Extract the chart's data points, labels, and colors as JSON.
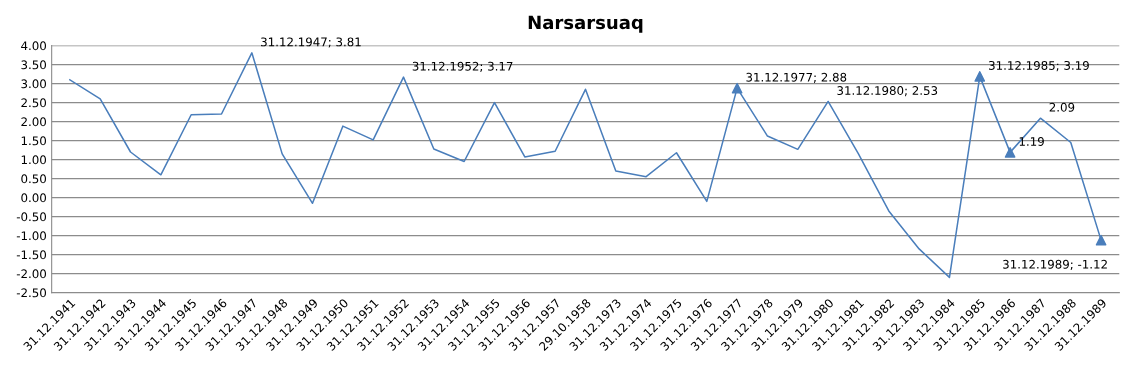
{
  "chart_data": {
    "type": "line",
    "title": "Narsarsuaq",
    "categories": [
      "31.12.1941",
      "31.12.1942",
      "31.12.1943",
      "31.12.1944",
      "31.12.1945",
      "31.12.1946",
      "31.12.1947",
      "31.12.1948",
      "31.12.1949",
      "31.12.1950",
      "31.12.1951",
      "31.12.1952",
      "31.12.1953",
      "31.12.1954",
      "31.12.1955",
      "31.12.1956",
      "31.12.1957",
      "29.10.1958",
      "31.12.1973",
      "31.12.1974",
      "31.12.1975",
      "31.12.1976",
      "31.12.1977",
      "31.12.1978",
      "31.12.1979",
      "31.12.1980",
      "31.12.1981",
      "31.12.1982",
      "31.12.1983",
      "31.12.1984",
      "31.12.1985",
      "31.12.1986",
      "31.12.1987",
      "31.12.1988",
      "31.12.1989"
    ],
    "series": [
      {
        "color": "#4a7ebb",
        "marker": "none",
        "line_style": "solid",
        "values": [
          3.1,
          2.6,
          1.2,
          0.6,
          2.18,
          2.2,
          3.81,
          1.15,
          -0.15,
          1.88,
          1.52,
          3.17,
          1.28,
          0.95,
          2.5,
          1.07,
          1.22,
          2.85,
          0.7,
          0.55,
          1.18,
          -0.1,
          2.88,
          1.62,
          1.27,
          2.53,
          1.15,
          -0.35,
          -1.35,
          -2.1,
          3.19,
          1.19,
          2.09,
          1.45,
          -1.12
        ]
      },
      {
        "type": "scatter",
        "color": "#4a7ebb",
        "marker": "triangle",
        "x": [
          "31.12.1977",
          "31.12.1985",
          "31.12.1986",
          "31.12.1989"
        ],
        "values": [
          2.88,
          3.19,
          1.19,
          -1.12
        ]
      }
    ],
    "annotations": [
      {
        "text": "31.12.1947; 3.81",
        "x": "31.12.1947",
        "y": 3.81
      },
      {
        "text": "31.12.1952; 3.17",
        "x": "31.12.1952",
        "y": 3.17
      },
      {
        "text": "31.12.1977; 2.88",
        "x": "31.12.1977",
        "y": 2.88
      },
      {
        "text": "31.12.1980; 2.53",
        "x": "31.12.1980",
        "y": 2.53
      },
      {
        "text": "31.12.1985; 3.19",
        "x": "31.12.1985",
        "y": 3.19
      },
      {
        "text": "1.19",
        "x": "31.12.1986",
        "y": 1.19
      },
      {
        "text": "2.09",
        "x": "31.12.1987",
        "y": 2.09
      },
      {
        "text": "31.12.1989; -1.12",
        "x": "31.12.1989",
        "y": -1.12
      }
    ],
    "ylim": [
      -2.5,
      4.0
    ],
    "yticks": [
      {
        "value": -2.5,
        "label": "-2.50"
      },
      {
        "value": -2.0,
        "label": "-2.00"
      },
      {
        "value": -1.5,
        "label": "-1.50"
      },
      {
        "value": -1.0,
        "label": "-1.00"
      },
      {
        "value": -0.5,
        "label": "-0.50"
      },
      {
        "value": 0,
        "label": "0.00"
      },
      {
        "value": 0.5,
        "label": "0.50"
      },
      {
        "value": 1.0,
        "label": "1.00"
      },
      {
        "value": 1.5,
        "label": "1.50"
      },
      {
        "value": 2.0,
        "label": "2.00"
      },
      {
        "value": 2.5,
        "label": "2.50"
      },
      {
        "value": 3.0,
        "label": "3.00"
      },
      {
        "value": 3.5,
        "label": "3.50"
      },
      {
        "value": 4.0,
        "label": "4.00"
      }
    ],
    "grid": "y",
    "legend": false
  }
}
